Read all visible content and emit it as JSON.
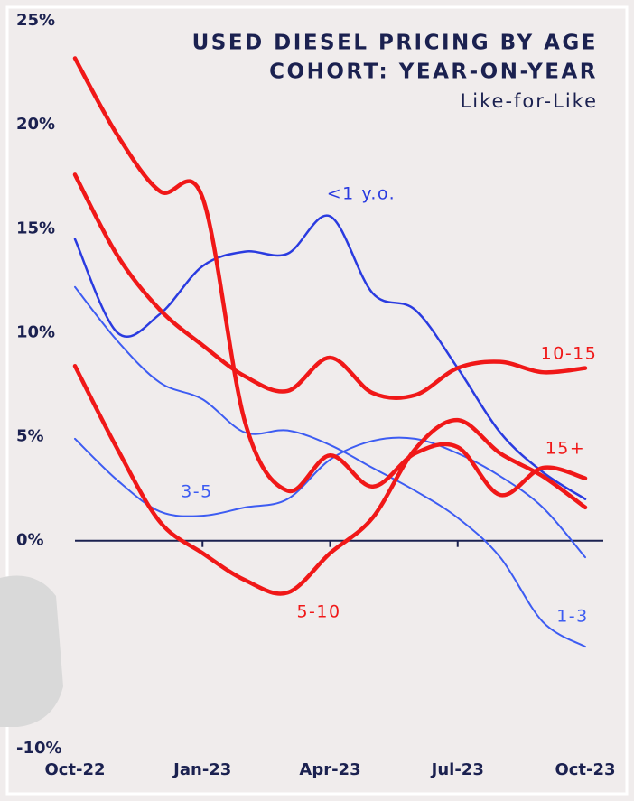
{
  "chart_data": {
    "type": "line",
    "title": [
      "USED DIESEL PRICING BY AGE",
      "COHORT: YEAR-ON-YEAR"
    ],
    "subtitle": "Like-for-Like",
    "categories": [
      "Oct-22",
      null,
      null,
      "Jan-23",
      null,
      null,
      "Apr-23",
      null,
      null,
      "Jul-23",
      null,
      null,
      "Oct-23"
    ],
    "series": [
      {
        "name": "<1 y.o.",
        "color": "#2a3be0",
        "values": [
          14.5,
          10.0,
          10.9,
          13.2,
          13.9,
          13.8,
          15.6,
          11.9,
          11.1,
          8.3,
          5.2,
          3.3,
          2.0
        ]
      },
      {
        "name": "1-3",
        "color": "#3d5cf2",
        "values": [
          12.2,
          9.6,
          7.6,
          6.8,
          5.2,
          5.3,
          4.6,
          3.5,
          2.4,
          1.1,
          -0.8,
          -3.9,
          -5.1
        ]
      },
      {
        "name": "3-5",
        "color": "#3d5cf2",
        "values": [
          4.9,
          2.9,
          1.4,
          1.2,
          1.6,
          2.0,
          3.9,
          4.8,
          4.9,
          4.2,
          3.1,
          1.6,
          -0.8
        ]
      },
      {
        "name": "10-15",
        "color": "#f01818",
        "values": [
          17.6,
          13.7,
          11.1,
          9.4,
          7.9,
          7.2,
          8.8,
          7.1,
          7.0,
          8.3,
          8.6,
          8.1,
          8.3
        ]
      },
      {
        "name": "15+",
        "color": "#f01818",
        "values": [
          23.2,
          19.5,
          16.8,
          16.5,
          5.7,
          2.4,
          4.1,
          2.6,
          4.2,
          4.5,
          2.2,
          3.5,
          3.0
        ]
      },
      {
        "name": "5-10",
        "color": "#f01818",
        "values": [
          8.4,
          4.4,
          0.9,
          -0.6,
          -1.9,
          -2.5,
          -0.6,
          1.1,
          4.4,
          5.8,
          4.2,
          3.1,
          1.6
        ]
      }
    ],
    "ylim": [
      -10,
      25
    ],
    "yticks": [
      {
        "value": 25,
        "label": "25%"
      },
      {
        "value": 20,
        "label": "20%"
      },
      {
        "value": 15,
        "label": "15%"
      },
      {
        "value": 10,
        "label": "10%"
      },
      {
        "value": 5,
        "label": "5%"
      },
      {
        "value": 0,
        "label": "0%"
      },
      {
        "value": -10,
        "label": "-10%"
      }
    ],
    "grid": false
  }
}
